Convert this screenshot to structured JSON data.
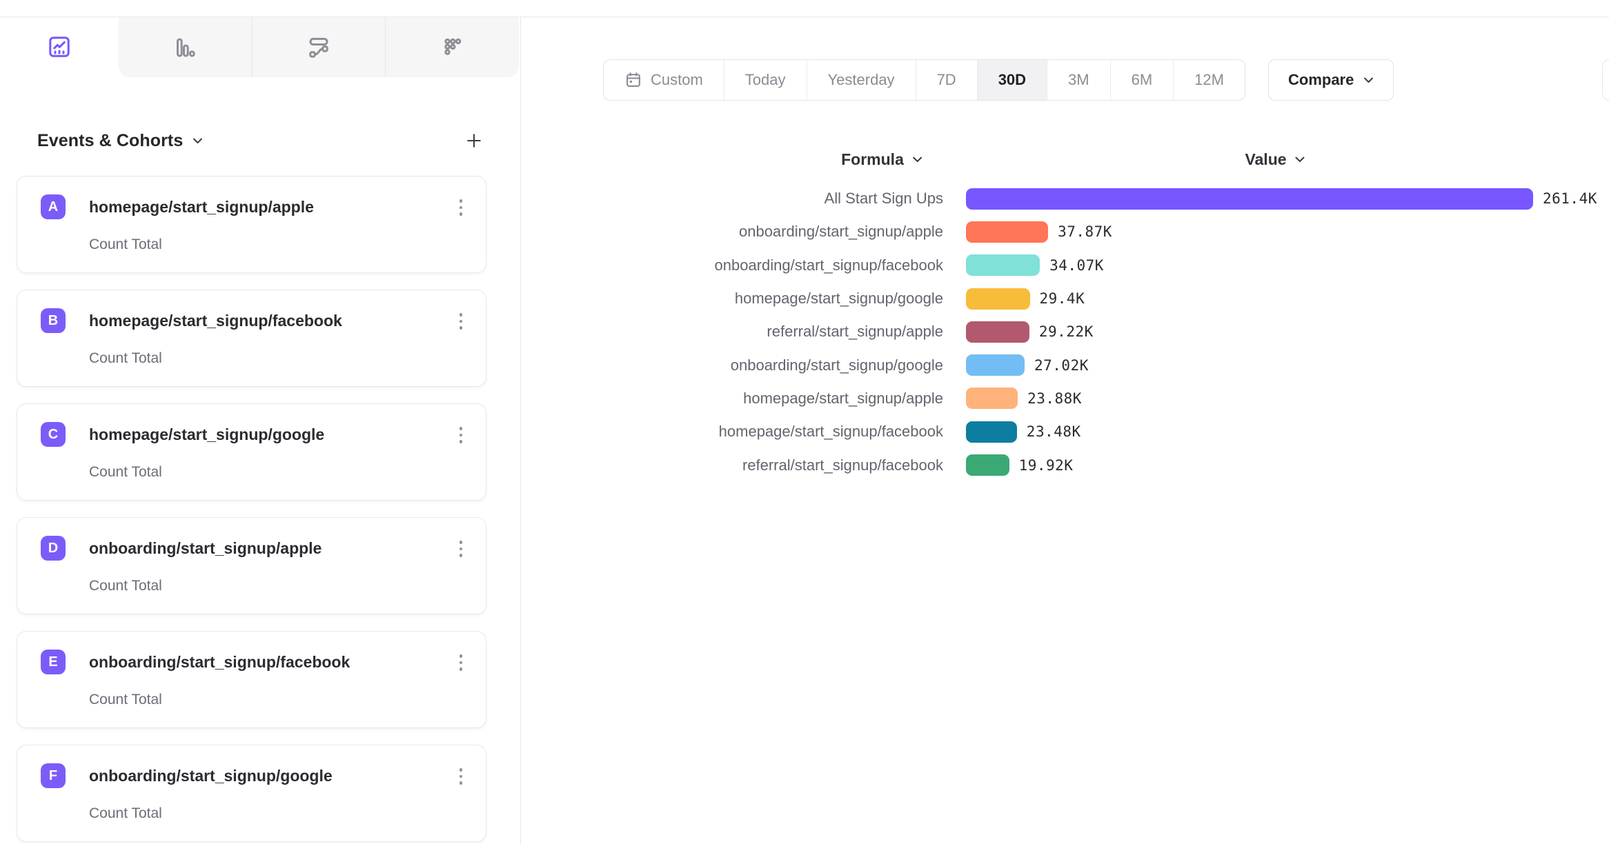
{
  "app": {
    "tabs": [
      {
        "id": "insights",
        "icon": "line-chart-icon",
        "active": true
      },
      {
        "id": "funnels",
        "icon": "funnel-bars-icon",
        "active": false
      },
      {
        "id": "flows",
        "icon": "flows-icon",
        "active": false
      },
      {
        "id": "retention",
        "icon": "retention-dots-icon",
        "active": false
      }
    ]
  },
  "sidebar": {
    "title": "Events & Cohorts",
    "title_chevron_icon": "chevron-down-icon",
    "add_icon": "plus-icon",
    "metric_label": "Count Total",
    "events": [
      {
        "letter": "A",
        "name": "homepage/start_signup/apple",
        "metric": "Count Total"
      },
      {
        "letter": "B",
        "name": "homepage/start_signup/facebook",
        "metric": "Count Total"
      },
      {
        "letter": "C",
        "name": "homepage/start_signup/google",
        "metric": "Count Total"
      },
      {
        "letter": "D",
        "name": "onboarding/start_signup/apple",
        "metric": "Count Total"
      },
      {
        "letter": "E",
        "name": "onboarding/start_signup/facebook",
        "metric": "Count Total"
      },
      {
        "letter": "F",
        "name": "onboarding/start_signup/google",
        "metric": "Count Total"
      }
    ]
  },
  "toolbar": {
    "date_ranges": [
      "Custom",
      "Today",
      "Yesterday",
      "7D",
      "30D",
      "3M",
      "6M",
      "12M"
    ],
    "active_range": "30D",
    "custom_icon": "calendar-icon",
    "compare_label": "Compare",
    "compare_chevron_icon": "chevron-down-icon"
  },
  "chart_data": {
    "type": "bar",
    "orientation": "horizontal",
    "column_headers": [
      "Formula",
      "Value"
    ],
    "categories": [
      "All Start Sign Ups",
      "onboarding/start_signup/apple",
      "onboarding/start_signup/facebook",
      "homepage/start_signup/google",
      "referral/start_signup/apple",
      "onboarding/start_signup/google",
      "homepage/start_signup/apple",
      "homepage/start_signup/facebook",
      "referral/start_signup/facebook"
    ],
    "values": [
      261400,
      37870,
      34070,
      29400,
      29220,
      27020,
      23880,
      23480,
      19920
    ],
    "value_labels": [
      "261.4K",
      "37.87K",
      "34.07K",
      "29.4K",
      "29.22K",
      "27.02K",
      "23.88K",
      "23.48K",
      "19.92K"
    ],
    "colors": [
      "#7856FF",
      "#FF7557",
      "#80E1D9",
      "#F8BC3B",
      "#B2596E",
      "#72BEF4",
      "#FFB27A",
      "#0D7EA0",
      "#3BA974"
    ],
    "xlim": [
      0,
      261400
    ],
    "grid": false,
    "legend": "none"
  },
  "colors": {
    "accent": "#7856FF",
    "badge": "#7C5CF8",
    "inactive_icon": "#8e8e96",
    "border": "#e8e8ec"
  }
}
